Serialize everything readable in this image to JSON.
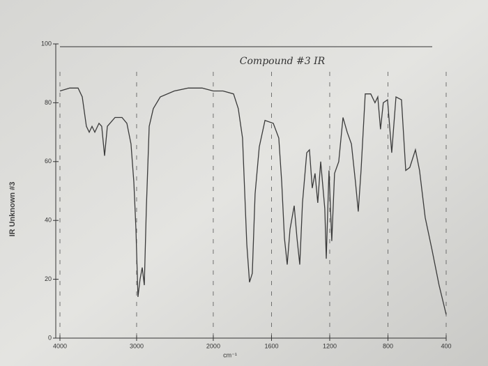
{
  "chart_data": {
    "type": "line",
    "title": "Compound #3 IR",
    "side_label": "IR Unknown #3",
    "x_label": "cm⁻¹",
    "x": [
      4000,
      3873,
      3764,
      3709,
      3655,
      3618,
      3582,
      3545,
      3491,
      3455,
      3418,
      3382,
      3282,
      3191,
      3127,
      3073,
      3036,
      3009,
      2982,
      2955,
      2927,
      2900,
      2873,
      2836,
      2782,
      2691,
      2509,
      2327,
      2145,
      2000,
      1933,
      1861,
      1828,
      1799,
      1770,
      1751,
      1732,
      1713,
      1684,
      1645,
      1588,
      1550,
      1530,
      1511,
      1492,
      1473,
      1444,
      1425,
      1406,
      1387,
      1358,
      1339,
      1320,
      1301,
      1282,
      1262,
      1234,
      1224,
      1205,
      1186,
      1167,
      1138,
      1109,
      1080,
      1051,
      1023,
      1004,
      985,
      956,
      918,
      889,
      870,
      851,
      832,
      803,
      774,
      745,
      707,
      678,
      650,
      611,
      583,
      544,
      497,
      449,
      400
    ],
    "values": [
      84,
      85,
      85,
      82,
      72,
      70,
      72,
      70,
      73,
      72,
      62,
      72,
      75,
      75,
      73,
      66,
      53,
      37,
      14,
      20,
      24,
      18,
      44,
      72,
      78,
      82,
      84,
      85,
      85,
      84,
      84,
      83,
      78,
      68,
      32,
      19,
      22,
      49,
      65,
      74,
      73,
      68,
      53,
      34,
      25,
      37,
      45,
      34,
      25,
      46,
      63,
      64,
      51,
      56,
      46,
      60,
      44,
      27,
      57,
      33,
      56,
      60,
      75,
      70,
      66,
      53,
      43,
      57,
      83,
      83,
      80,
      82,
      71,
      80,
      81,
      63,
      82,
      81,
      57,
      58,
      64,
      57,
      41,
      30,
      18,
      8
    ],
    "color": "#3a3a3a",
    "xlim": [
      4000,
      400
    ],
    "x_scale_change": 2000,
    "xticks": [
      4000,
      3000,
      2000,
      1600,
      1200,
      800,
      400
    ],
    "ylim": [
      0,
      100
    ],
    "yticks": [
      0,
      20,
      40,
      60,
      80,
      100
    ]
  }
}
